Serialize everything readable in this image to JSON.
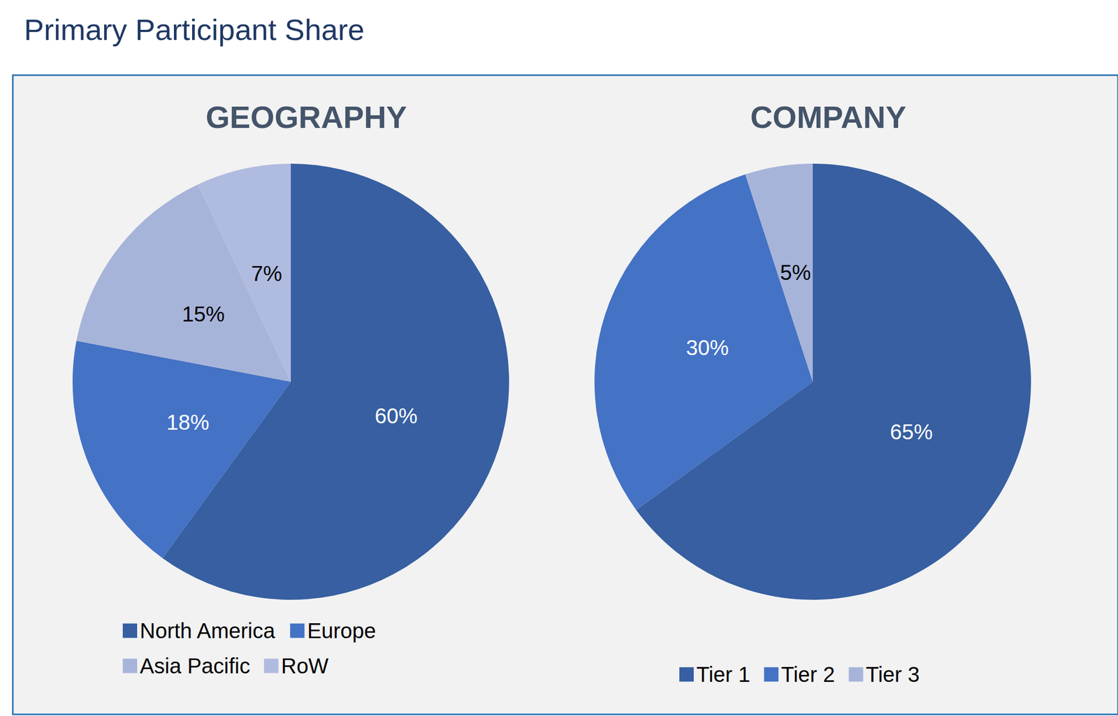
{
  "title": "Primary Participant Share",
  "chart_data": [
    {
      "type": "pie",
      "title": "GEOGRAPHY",
      "categories": [
        "North America",
        "Europe",
        "Asia Pacific",
        "RoW"
      ],
      "values": [
        60,
        18,
        15,
        7
      ],
      "value_labels": [
        "60%",
        "18%",
        "15%",
        "7%"
      ],
      "colors": [
        "#375fa1",
        "#4472c4",
        "#a7b4d9",
        "#b0bbe0"
      ],
      "data_labels": true,
      "legend": "bottom"
    },
    {
      "type": "pie",
      "title": "COMPANY",
      "categories": [
        "Tier 1",
        "Tier 2",
        "Tier 3"
      ],
      "values": [
        65,
        30,
        5
      ],
      "value_labels": [
        "65%",
        "30%",
        "5%"
      ],
      "colors": [
        "#375fa1",
        "#4472c4",
        "#a7b4d9"
      ],
      "data_labels": true,
      "legend": "bottom"
    }
  ]
}
